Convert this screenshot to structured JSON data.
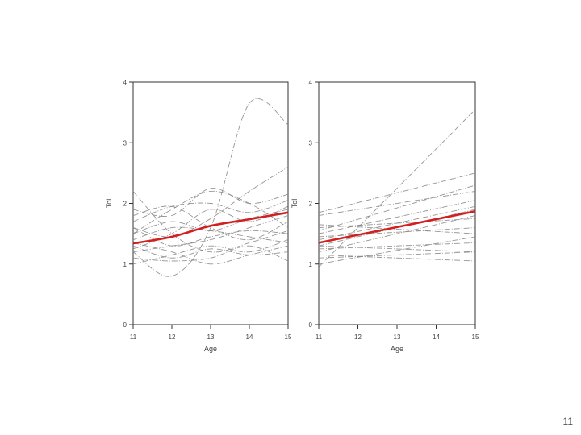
{
  "slide": {
    "page_number": "11"
  },
  "chart_data": [
    {
      "type": "line",
      "xlabel": "Age",
      "ylabel": "Tol",
      "x": [
        11,
        12,
        13,
        14,
        15
      ],
      "xticks": [
        "11",
        "12",
        "13",
        "14",
        "15"
      ],
      "yticks": [
        "0",
        "1",
        "2",
        "3",
        "4"
      ],
      "xlim": [
        11,
        15
      ],
      "ylim": [
        0,
        4
      ],
      "grid": false,
      "series": [
        {
          "role": "individual",
          "values": [
            1.7,
            1.95,
            2.0,
            1.85,
            2.05
          ]
        },
        {
          "role": "individual",
          "values": [
            1.3,
            1.1,
            1.25,
            1.15,
            1.2
          ]
        },
        {
          "role": "individual",
          "values": [
            1.2,
            0.8,
            1.6,
            3.65,
            3.3
          ]
        },
        {
          "role": "individual",
          "values": [
            1.4,
            1.6,
            1.55,
            1.45,
            1.35
          ]
        },
        {
          "role": "individual",
          "values": [
            1.5,
            1.9,
            2.2,
            2.0,
            1.6
          ]
        },
        {
          "role": "individual",
          "values": [
            1.1,
            1.05,
            1.1,
            1.3,
            1.05
          ]
        },
        {
          "role": "individual",
          "values": [
            1.6,
            1.45,
            1.75,
            2.2,
            2.6
          ]
        },
        {
          "role": "individual",
          "values": [
            2.2,
            1.5,
            1.2,
            1.35,
            1.55
          ]
        },
        {
          "role": "individual",
          "values": [
            1.9,
            1.8,
            2.25,
            2.0,
            2.15
          ]
        },
        {
          "role": "individual",
          "values": [
            1.2,
            1.3,
            1.4,
            1.6,
            1.8
          ]
        },
        {
          "role": "individual",
          "values": [
            1.5,
            1.7,
            1.55,
            1.75,
            1.9
          ]
        },
        {
          "role": "individual",
          "values": [
            1.0,
            1.15,
            1.3,
            1.2,
            1.4
          ]
        },
        {
          "role": "individual",
          "values": [
            1.35,
            1.2,
            1.0,
            1.15,
            1.3
          ]
        },
        {
          "role": "individual",
          "values": [
            1.8,
            1.95,
            1.6,
            1.4,
            1.7
          ]
        },
        {
          "role": "individual",
          "values": [
            1.25,
            1.5,
            1.9,
            1.7,
            1.95
          ]
        },
        {
          "role": "individual",
          "values": [
            1.6,
            1.3,
            1.45,
            1.55,
            1.5
          ]
        },
        {
          "role": "mean",
          "values": [
            1.34,
            1.45,
            1.63,
            1.74,
            1.85
          ],
          "color": "#d02020"
        }
      ]
    },
    {
      "type": "line",
      "xlabel": "Age",
      "ylabel": "Tol",
      "x": [
        11,
        15
      ],
      "xticks": [
        "11",
        "12",
        "13",
        "14",
        "15"
      ],
      "yticks": [
        "0",
        "1",
        "2",
        "3",
        "4"
      ],
      "xlim": [
        11,
        15
      ],
      "ylim": [
        0,
        4
      ],
      "grid": false,
      "series": [
        {
          "role": "individual",
          "values": [
            0.95,
            3.55
          ]
        },
        {
          "role": "individual",
          "values": [
            1.85,
            2.5
          ]
        },
        {
          "role": "individual",
          "values": [
            1.8,
            2.2
          ]
        },
        {
          "role": "individual",
          "values": [
            1.55,
            2.3
          ]
        },
        {
          "role": "individual",
          "values": [
            1.5,
            2.05
          ]
        },
        {
          "role": "individual",
          "values": [
            1.4,
            1.95
          ]
        },
        {
          "role": "individual",
          "values": [
            1.3,
            1.9
          ]
        },
        {
          "role": "individual",
          "values": [
            1.2,
            1.8
          ]
        },
        {
          "role": "individual",
          "values": [
            1.6,
            1.75
          ]
        },
        {
          "role": "individual",
          "values": [
            1.45,
            1.6
          ]
        },
        {
          "role": "individual",
          "values": [
            1.25,
            1.35
          ]
        },
        {
          "role": "individual",
          "values": [
            1.3,
            1.2
          ]
        },
        {
          "role": "individual",
          "values": [
            1.1,
            1.2
          ]
        },
        {
          "role": "individual",
          "values": [
            1.15,
            1.05
          ]
        },
        {
          "role": "individual",
          "values": [
            1.0,
            1.45
          ]
        },
        {
          "role": "individual",
          "values": [
            1.65,
            1.5
          ]
        },
        {
          "role": "mean",
          "values": [
            1.35,
            1.87
          ],
          "color": "#d02020"
        }
      ]
    }
  ]
}
